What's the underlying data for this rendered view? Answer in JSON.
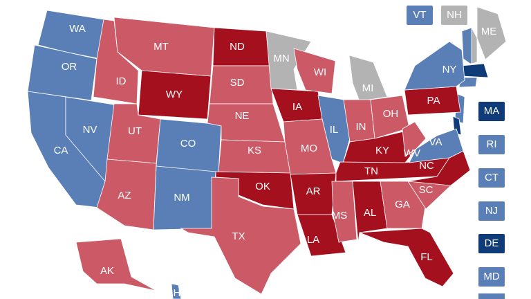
{
  "states": [
    {
      "label": "WA",
      "color": "#5a7fb7"
    },
    {
      "label": "OR",
      "color": "#5a7fb7"
    },
    {
      "label": "CA",
      "color": "#5a7fb7"
    },
    {
      "label": "NV",
      "color": "#5a7fb7"
    },
    {
      "label": "ID",
      "color": "#cb5a66"
    },
    {
      "label": "MT",
      "color": "#cb5a66"
    },
    {
      "label": "WY",
      "color": "#a4101e"
    },
    {
      "label": "UT",
      "color": "#cb5a66"
    },
    {
      "label": "AZ",
      "color": "#cb5a66"
    },
    {
      "label": "CO",
      "color": "#5a7fb7"
    },
    {
      "label": "NM",
      "color": "#5a7fb7"
    },
    {
      "label": "ND",
      "color": "#a4101e"
    },
    {
      "label": "SD",
      "color": "#cb5a66"
    },
    {
      "label": "NE",
      "color": "#cb5a66"
    },
    {
      "label": "KS",
      "color": "#cb5a66"
    },
    {
      "label": "OK",
      "color": "#a4101e"
    },
    {
      "label": "TX",
      "color": "#cb5a66"
    },
    {
      "label": "MN",
      "color": "#b3b3b3"
    },
    {
      "label": "IA",
      "color": "#a4101e"
    },
    {
      "label": "MO",
      "color": "#cb5a66"
    },
    {
      "label": "AR",
      "color": "#a4101e"
    },
    {
      "label": "LA",
      "color": "#a4101e"
    },
    {
      "label": "WI",
      "color": "#cb5a66"
    },
    {
      "label": "IL",
      "color": "#5a7fb7"
    },
    {
      "label": "MI",
      "color": "#b3b3b3"
    },
    {
      "label": "IN",
      "color": "#cb5a66"
    },
    {
      "label": "OH",
      "color": "#cb5a66"
    },
    {
      "label": "KY",
      "color": "#a4101e"
    },
    {
      "label": "TN",
      "color": "#a4101e"
    },
    {
      "label": "MS",
      "color": "#cb5a66"
    },
    {
      "label": "AL",
      "color": "#a4101e"
    },
    {
      "label": "GA",
      "color": "#cb5a66"
    },
    {
      "label": "FL",
      "color": "#a4101e"
    },
    {
      "label": "SC",
      "color": "#cb5a66"
    },
    {
      "label": "NC",
      "color": "#a4101e"
    },
    {
      "label": "VA",
      "color": "#5a7fb7"
    },
    {
      "label": "WV",
      "color": "#cb5a66"
    },
    {
      "label": "PA",
      "color": "#a4101e"
    },
    {
      "label": "NY",
      "color": "#5a7fb7"
    },
    {
      "label": "ME",
      "color": "#b3b3b3"
    },
    {
      "label": "AK",
      "color": "#cb5a66"
    },
    {
      "label": "HI",
      "color": "#5a7fb7"
    }
  ],
  "boxes": [
    {
      "label": "VT",
      "color": "#5a7fb7"
    },
    {
      "label": "NH",
      "color": "#b3b3b3"
    },
    {
      "label": "MA",
      "color": "#0f3b78"
    },
    {
      "label": "RI",
      "color": "#5a7fb7"
    },
    {
      "label": "CT",
      "color": "#5a7fb7"
    },
    {
      "label": "NJ",
      "color": "#5a7fb7"
    },
    {
      "label": "DE",
      "color": "#0f3b78"
    },
    {
      "label": "MD",
      "color": "#5a7fb7"
    }
  ]
}
